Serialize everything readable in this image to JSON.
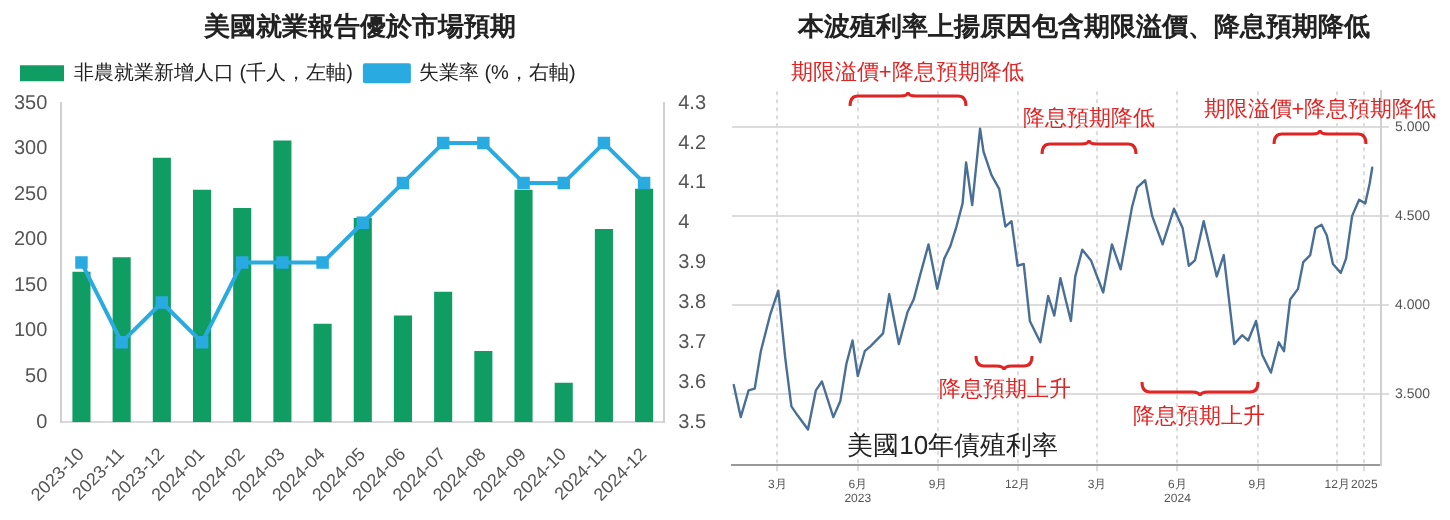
{
  "chart_data": [
    {
      "type": "bar",
      "title": "美國就業報告優於市場預期",
      "categories": [
        "2023-10",
        "2023-11",
        "2023-12",
        "2024-01",
        "2024-02",
        "2024-03",
        "2024-04",
        "2024-05",
        "2024-06",
        "2024-07",
        "2024-08",
        "2024-09",
        "2024-10",
        "2024-11",
        "2024-12"
      ],
      "series": [
        {
          "name": "非農就業新增人口 (千人，左軸)",
          "type": "bar",
          "color": "#0f9d63",
          "values": [
            165,
            181,
            290,
            255,
            235,
            309,
            108,
            224,
            117,
            143,
            78,
            255,
            43,
            212,
            256
          ]
        },
        {
          "name": "失業率 (%，右軸)",
          "type": "line",
          "axis": "y2",
          "color": "#29abe2",
          "marker": "square",
          "values": [
            3.9,
            3.7,
            3.8,
            3.7,
            3.9,
            3.9,
            3.9,
            4.0,
            4.1,
            4.2,
            4.2,
            4.1,
            4.1,
            4.2,
            4.1
          ]
        }
      ],
      "ylim": [
        0,
        350
      ],
      "yticks": [
        0,
        50,
        100,
        150,
        200,
        250,
        300,
        350
      ],
      "y2lim": [
        3.5,
        4.3
      ],
      "y2ticks": [
        3.5,
        3.6,
        3.7,
        3.8,
        3.9,
        4,
        4.1,
        4.2,
        4.3
      ],
      "legend": "top left",
      "grid": false
    },
    {
      "type": "line",
      "title": "本波殖利率上揚原因包含期限溢價、降息預期降低",
      "series": [
        {
          "color": "#4a6f96",
          "axis": "y2",
          "marker": "none",
          "x": [
            "2023-01-10",
            "2023-01-18",
            "2023-01-27",
            "2023-02-03",
            "2023-02-10",
            "2023-02-21",
            "2023-03-02",
            "2023-03-10",
            "2023-03-17",
            "2023-03-24",
            "2023-04-05",
            "2023-04-14",
            "2023-04-21",
            "2023-05-04",
            "2023-05-12",
            "2023-05-19",
            "2023-05-26",
            "2023-06-01",
            "2023-06-09",
            "2023-06-16",
            "2023-06-30",
            "2023-07-07",
            "2023-07-18",
            "2023-07-28",
            "2023-08-04",
            "2023-08-11",
            "2023-08-21",
            "2023-08-31",
            "2023-09-08",
            "2023-09-15",
            "2023-09-22",
            "2023-09-29",
            "2023-10-03",
            "2023-10-10",
            "2023-10-19",
            "2023-10-23",
            "2023-11-01",
            "2023-11-10",
            "2023-11-17",
            "2023-11-24",
            "2023-12-01",
            "2023-12-08",
            "2023-12-15",
            "2023-12-27",
            "2024-01-05",
            "2024-01-12",
            "2024-01-19",
            "2024-01-31",
            "2024-02-05",
            "2024-02-13",
            "2024-02-23",
            "2024-03-08",
            "2024-03-18",
            "2024-03-28",
            "2024-04-10",
            "2024-04-16",
            "2024-04-25",
            "2024-05-03",
            "2024-05-15",
            "2024-05-28",
            "2024-06-07",
            "2024-06-14",
            "2024-06-21",
            "2024-07-01",
            "2024-07-16",
            "2024-07-24",
            "2024-08-05",
            "2024-08-14",
            "2024-08-21",
            "2024-08-30",
            "2024-09-06",
            "2024-09-16",
            "2024-09-25",
            "2024-10-01",
            "2024-10-08",
            "2024-10-17",
            "2024-10-23",
            "2024-10-31",
            "2024-11-06",
            "2024-11-13",
            "2024-11-19",
            "2024-11-26",
            "2024-12-05",
            "2024-12-11",
            "2024-12-18",
            "2024-12-26",
            "2025-01-02",
            "2025-01-07",
            "2025-01-10"
          ],
          "values": [
            3.55,
            3.37,
            3.52,
            3.53,
            3.74,
            3.95,
            4.08,
            3.7,
            3.43,
            3.38,
            3.3,
            3.52,
            3.57,
            3.37,
            3.46,
            3.67,
            3.8,
            3.6,
            3.74,
            3.77,
            3.84,
            4.06,
            3.78,
            3.96,
            4.03,
            4.16,
            4.34,
            4.09,
            4.26,
            4.33,
            4.44,
            4.57,
            4.8,
            4.56,
            4.99,
            4.86,
            4.73,
            4.65,
            4.44,
            4.47,
            4.22,
            4.23,
            3.91,
            3.79,
            4.05,
            3.94,
            4.15,
            3.91,
            4.16,
            4.31,
            4.25,
            4.07,
            4.34,
            4.2,
            4.55,
            4.66,
            4.7,
            4.5,
            4.34,
            4.54,
            4.43,
            4.22,
            4.25,
            4.47,
            4.16,
            4.28,
            3.78,
            3.83,
            3.8,
            3.91,
            3.72,
            3.62,
            3.79,
            3.74,
            4.03,
            4.09,
            4.24,
            4.28,
            4.43,
            4.45,
            4.39,
            4.23,
            4.18,
            4.26,
            4.5,
            4.59,
            4.57,
            4.68,
            4.77
          ]
        }
      ],
      "xlim": [
        "2023-01-08",
        "2025-01-20"
      ],
      "xticks": [
        {
          "value": "2023-03-01",
          "label": "3月"
        },
        {
          "value": "2023-06-01",
          "label": "6月\n2023"
        },
        {
          "value": "2023-09-01",
          "label": "9月"
        },
        {
          "value": "2023-12-01",
          "label": "12月"
        },
        {
          "value": "2024-03-01",
          "label": "3月"
        },
        {
          "value": "2024-06-01",
          "label": "6月\n2024"
        },
        {
          "value": "2024-09-01",
          "label": "9月"
        },
        {
          "value": "2024-12-01",
          "label": "12月"
        },
        {
          "value": "2025-01-01",
          "label": "2025"
        }
      ],
      "y2lim": [
        3.1,
        5.2
      ],
      "y2ticks": [
        {
          "value": 3.5,
          "label": "3.500"
        },
        {
          "value": 4,
          "label": "4.000"
        },
        {
          "value": 4.5,
          "label": "4.500"
        },
        {
          "value": 5,
          "label": "5.000"
        }
      ],
      "grid": true,
      "annotations": [
        "期限溢價+降息預期降低",
        "降息預期降低",
        "期限溢價+降息預期降低",
        "降息預期上升",
        "降息預期上升",
        "美國10年債殖利率"
      ]
    }
  ]
}
